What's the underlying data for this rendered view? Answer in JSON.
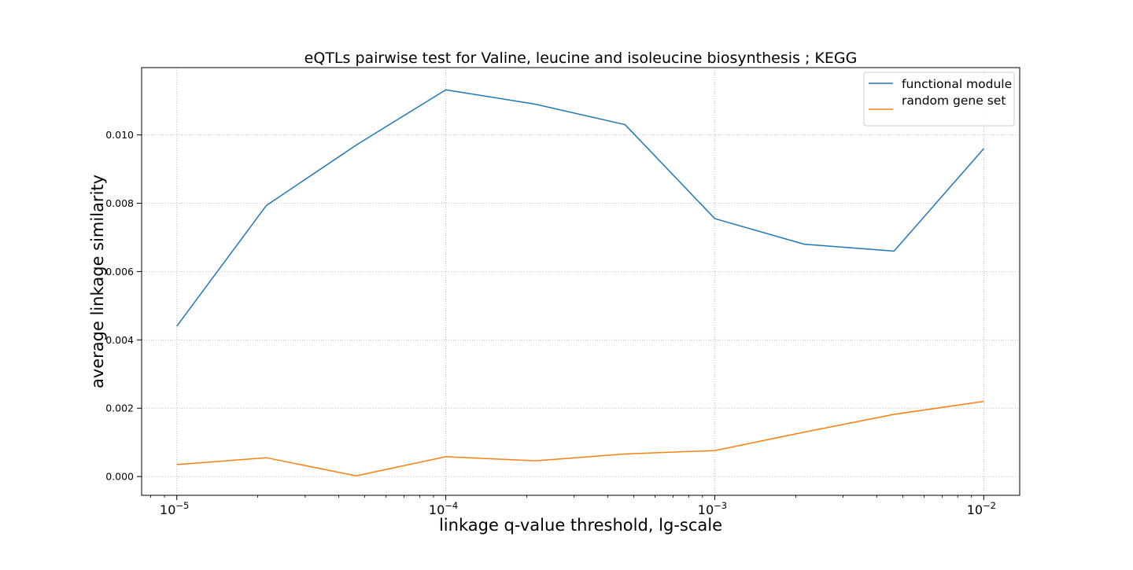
{
  "chart_data": {
    "type": "line",
    "title": "eQTLs pairwise test for Valine, leucine and isoleucine biosynthesis ; KEGG",
    "xlabel": "linkage q-value threshold, lg-scale",
    "ylabel": "average linkage similarity",
    "xscale": "log",
    "x": [
      1e-05,
      2.15e-05,
      4.64e-05,
      0.0001,
      0.000215,
      0.000464,
      0.001,
      0.00215,
      0.00464,
      0.01
    ],
    "xlim": [
      7.4e-06,
      0.0136
    ],
    "ylim": [
      -0.00055,
      0.01197
    ],
    "xticks": [
      {
        "value": 1e-05,
        "base": "10",
        "exp": "−5"
      },
      {
        "value": 0.0001,
        "base": "10",
        "exp": "−4"
      },
      {
        "value": 0.001,
        "base": "10",
        "exp": "−3"
      },
      {
        "value": 0.01,
        "base": "10",
        "exp": "−2"
      }
    ],
    "yticks": [
      {
        "value": 0.0,
        "label": "0.000"
      },
      {
        "value": 0.002,
        "label": "0.002"
      },
      {
        "value": 0.004,
        "label": "0.004"
      },
      {
        "value": 0.006,
        "label": "0.006"
      },
      {
        "value": 0.008,
        "label": "0.008"
      },
      {
        "value": 0.01,
        "label": "0.010"
      }
    ],
    "series": [
      {
        "name": "functional module",
        "color": "#1f77b4",
        "values": [
          0.0044,
          0.00793,
          0.0097,
          0.01132,
          0.0109,
          0.0103,
          0.00755,
          0.0068,
          0.0066,
          0.0096
        ]
      },
      {
        "name": "random gene set",
        "color": "#ff7f0e",
        "values": [
          0.00035,
          0.00055,
          2e-05,
          0.00058,
          0.00046,
          0.00066,
          0.00076,
          0.0013,
          0.00182,
          0.0022
        ]
      }
    ],
    "grid": true,
    "legend_position": "top-right"
  }
}
